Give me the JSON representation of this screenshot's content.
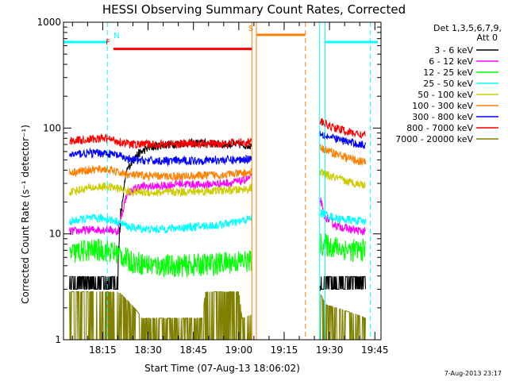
{
  "chart_data": {
    "type": "line",
    "title": "HESSI Observing Summary Count Rates, Corrected",
    "xlabel": "Start Time (07-Aug-13 18:06:02)",
    "ylabel": "Corrected Count Rate (s⁻¹ detector⁻¹)",
    "ylog": true,
    "ylim": [
      1,
      1000
    ],
    "xlim_minutes": [
      0,
      105
    ],
    "ytick_labels": [
      {
        "v": 1,
        "label": "1"
      },
      {
        "v": 10,
        "label": "10"
      },
      {
        "v": 100,
        "label": "100"
      },
      {
        "v": 1000,
        "label": "1000"
      }
    ],
    "xtick_labels": [
      {
        "t": "18:15",
        "m": 12.97
      },
      {
        "t": "18:30",
        "m": 27.97
      },
      {
        "t": "18:45",
        "m": 42.97
      },
      {
        "t": "19:00",
        "m": 57.97
      },
      {
        "t": "19:15",
        "m": 72.97
      },
      {
        "t": "19:30",
        "m": 87.97
      },
      {
        "t": "19:45",
        "m": 102.97
      }
    ],
    "legend": {
      "header1": "Det 1,3,5,6,7,9,",
      "header2": "Att 0",
      "position": "right"
    },
    "data_gaps": [
      [
        62.3,
        84.8
      ]
    ],
    "series": [
      {
        "name": "3 - 6 keV",
        "color": "#000000",
        "points": [
          [
            2,
            3
          ],
          [
            10,
            3
          ],
          [
            18,
            3
          ],
          [
            19.5,
            20
          ],
          [
            21,
            40
          ],
          [
            24,
            55
          ],
          [
            28,
            65
          ],
          [
            34,
            70
          ],
          [
            40,
            72
          ],
          [
            46,
            72
          ],
          [
            52,
            70
          ],
          [
            58,
            70
          ],
          [
            62,
            68
          ],
          [
            85,
            3
          ],
          [
            100,
            3
          ]
        ]
      },
      {
        "name": "6 - 12 keV",
        "color": "#ff00ff",
        "points": [
          [
            2,
            10.5
          ],
          [
            10,
            11
          ],
          [
            15,
            11
          ],
          [
            18,
            10.5
          ],
          [
            19.5,
            16
          ],
          [
            21,
            24
          ],
          [
            25,
            28
          ],
          [
            32,
            28
          ],
          [
            38,
            30
          ],
          [
            45,
            29
          ],
          [
            52,
            30
          ],
          [
            58,
            31
          ],
          [
            62,
            34
          ],
          [
            85,
            21
          ],
          [
            86,
            15
          ],
          [
            90,
            12
          ],
          [
            95,
            11
          ],
          [
            100,
            10.5
          ]
        ]
      },
      {
        "name": "12 - 25 keV",
        "color": "#00ff00",
        "points": [
          [
            2,
            6.5
          ],
          [
            8,
            7
          ],
          [
            14,
            7
          ],
          [
            18,
            6.5
          ],
          [
            22,
            5.5
          ],
          [
            30,
            5
          ],
          [
            40,
            5
          ],
          [
            50,
            5.2
          ],
          [
            58,
            5.5
          ],
          [
            62,
            5.5
          ],
          [
            85,
            8
          ],
          [
            90,
            7.5
          ],
          [
            95,
            7
          ],
          [
            100,
            7
          ]
        ]
      },
      {
        "name": "25 - 50 keV",
        "color": "#00ffff",
        "points": [
          [
            2,
            13
          ],
          [
            8,
            14
          ],
          [
            14,
            14
          ],
          [
            18,
            13
          ],
          [
            22,
            11.5
          ],
          [
            30,
            11
          ],
          [
            40,
            11.5
          ],
          [
            50,
            12
          ],
          [
            58,
            13
          ],
          [
            62,
            14
          ],
          [
            85,
            16
          ],
          [
            90,
            14
          ],
          [
            95,
            13.5
          ],
          [
            100,
            13
          ]
        ]
      },
      {
        "name": "50 - 100 keV",
        "color": "#cccc00",
        "points": [
          [
            2,
            25
          ],
          [
            8,
            27
          ],
          [
            14,
            28
          ],
          [
            18,
            27
          ],
          [
            22,
            25
          ],
          [
            30,
            24.5
          ],
          [
            40,
            25
          ],
          [
            50,
            25.5
          ],
          [
            58,
            26
          ],
          [
            62,
            27
          ],
          [
            85,
            38
          ],
          [
            88,
            35
          ],
          [
            94,
            31
          ],
          [
            100,
            29
          ]
        ]
      },
      {
        "name": "100 - 300 keV",
        "color": "#ff8000",
        "points": [
          [
            2,
            38
          ],
          [
            8,
            40
          ],
          [
            14,
            41
          ],
          [
            18,
            38
          ],
          [
            22,
            36
          ],
          [
            30,
            35
          ],
          [
            40,
            35
          ],
          [
            50,
            36
          ],
          [
            58,
            37
          ],
          [
            62,
            38
          ],
          [
            85,
            65
          ],
          [
            88,
            60
          ],
          [
            94,
            52
          ],
          [
            100,
            47
          ]
        ]
      },
      {
        "name": "300 - 800 keV",
        "color": "#0000ff",
        "points": [
          [
            2,
            56
          ],
          [
            8,
            58
          ],
          [
            14,
            58
          ],
          [
            18,
            55
          ],
          [
            22,
            50
          ],
          [
            30,
            49
          ],
          [
            40,
            49
          ],
          [
            50,
            50
          ],
          [
            58,
            50
          ],
          [
            62,
            52
          ],
          [
            85,
            90
          ],
          [
            88,
            82
          ],
          [
            94,
            74
          ],
          [
            100,
            68
          ]
        ]
      },
      {
        "name": "800 - 7000 keV",
        "color": "#ff0000",
        "points": [
          [
            2,
            76
          ],
          [
            8,
            78
          ],
          [
            14,
            80
          ],
          [
            18,
            75
          ],
          [
            22,
            70
          ],
          [
            30,
            70
          ],
          [
            40,
            71
          ],
          [
            50,
            71
          ],
          [
            58,
            73
          ],
          [
            62,
            74
          ],
          [
            85,
            115
          ],
          [
            88,
            104
          ],
          [
            94,
            92
          ],
          [
            100,
            85
          ]
        ]
      },
      {
        "name": "7000 - 20000 keV",
        "color": "#808000",
        "points": [
          [
            2,
            1.6
          ],
          [
            10,
            1.6
          ],
          [
            18,
            1.6
          ],
          [
            26,
            0.9
          ],
          [
            46,
            0.9
          ],
          [
            47,
            1.6
          ],
          [
            58,
            1.6
          ],
          [
            59,
            0.9
          ],
          [
            85,
            1.5
          ],
          [
            87,
            1.2
          ],
          [
            100,
            0.9
          ]
        ]
      }
    ],
    "flag_bars": [
      {
        "label": "",
        "color": "#00ffff",
        "start": 0,
        "end": 14.5,
        "value": 650
      },
      {
        "label": "N",
        "color": "#00ffff",
        "start": 14.5,
        "end": 14.6,
        "value": 650
      },
      {
        "label": "F",
        "color": "#ff0000",
        "start": 16.5,
        "end": 62.3,
        "value": 560
      },
      {
        "label": "S",
        "color": "#ff8000",
        "start": 63.8,
        "end": 80,
        "value": 760
      },
      {
        "label": "",
        "color": "#00ffff",
        "start": 86.5,
        "end": 104,
        "value": 650
      }
    ],
    "vertical_lines": [
      {
        "m": 14.5,
        "color": "#00ffff",
        "style": "dashed"
      },
      {
        "m": 80,
        "color": "#ff8000",
        "style": "dashed"
      },
      {
        "m": 101.5,
        "color": "#00ffff",
        "style": "dashed"
      },
      {
        "m": 62.3,
        "color": "#ff8000",
        "style": "solid"
      },
      {
        "m": 63.8,
        "color": "#ff8000",
        "style": "solid"
      },
      {
        "m": 84.6,
        "color": "#00ffff",
        "style": "solid"
      },
      {
        "m": 86.5,
        "color": "#00ffff",
        "style": "solid"
      }
    ]
  },
  "footer": {
    "timestamp": "7-Aug-2013 23:17"
  }
}
